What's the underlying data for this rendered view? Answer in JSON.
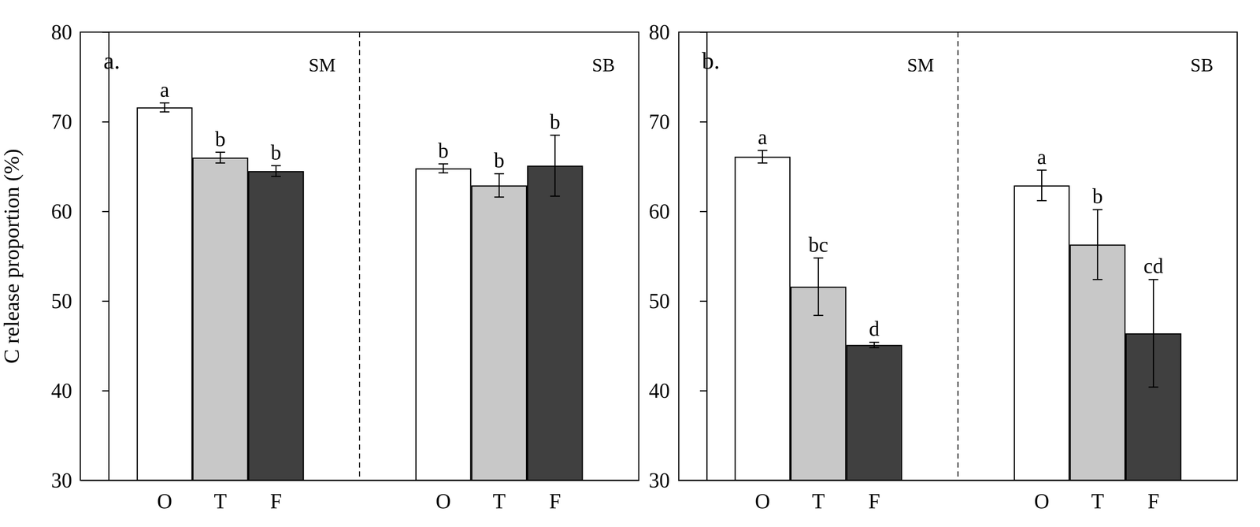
{
  "chart_data": [
    {
      "type": "bar",
      "panel": "a.",
      "y_label": "C release proportion (%)",
      "categories": [
        "O",
        "T",
        "F"
      ],
      "colors": [
        "#ffffff",
        "#c8c8c8",
        "#404040"
      ],
      "groups": [
        {
          "name": "SM",
          "values": [
            71.6,
            66.0,
            64.5
          ],
          "errors": [
            0.5,
            0.6,
            0.6
          ],
          "letters": [
            "a",
            "b",
            "b"
          ]
        },
        {
          "name": "SB",
          "values": [
            64.8,
            62.9,
            65.1
          ],
          "errors": [
            0.5,
            1.3,
            3.4
          ],
          "letters": [
            "b",
            "b",
            "b"
          ]
        }
      ],
      "ylim": [
        30,
        80
      ],
      "yticks": [
        30,
        40,
        50,
        60,
        70,
        80
      ],
      "grid": false
    },
    {
      "type": "bar",
      "panel": "b.",
      "categories": [
        "O",
        "T",
        "F"
      ],
      "colors": [
        "#ffffff",
        "#c8c8c8",
        "#404040"
      ],
      "groups": [
        {
          "name": "SM",
          "values": [
            66.1,
            51.6,
            45.1
          ],
          "errors": [
            0.7,
            3.2,
            0.3
          ],
          "letters": [
            "a",
            "bc",
            "d"
          ]
        },
        {
          "name": "SB",
          "values": [
            62.9,
            56.3,
            46.4
          ],
          "errors": [
            1.7,
            3.9,
            6.0
          ],
          "letters": [
            "a",
            "b",
            "cd"
          ]
        }
      ],
      "ylim": [
        30,
        80
      ],
      "yticks": [
        30,
        40,
        50,
        60,
        70,
        80
      ],
      "grid": false
    }
  ]
}
